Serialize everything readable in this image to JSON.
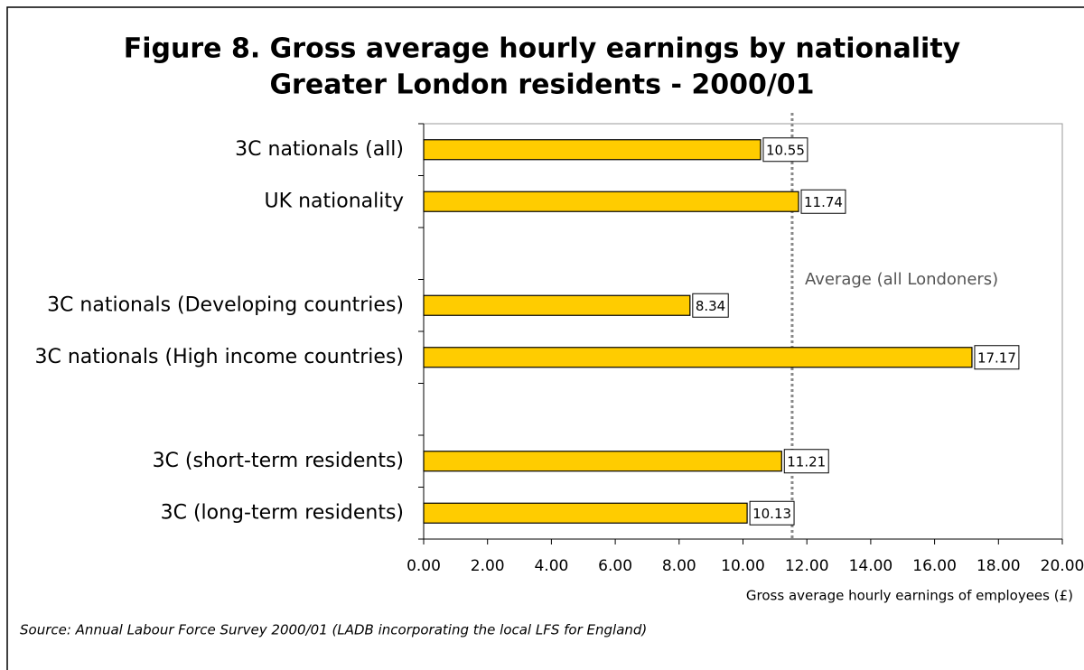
{
  "chart_data": {
    "type": "barh",
    "title": "Figure 8. Gross average hourly earnings by nationality",
    "subtitle": "Greater London residents - 2000/01",
    "categories": [
      "3C nationals (all)",
      "UK nationality",
      null,
      "3C nationals (Developing countries)",
      "3C nationals (High income countries)",
      null,
      "3C (short-term residents)",
      "3C (long-term residents)"
    ],
    "values": [
      10.55,
      11.74,
      null,
      8.34,
      17.17,
      null,
      11.21,
      10.13
    ],
    "color": "#ffcc00",
    "xlim": [
      0,
      20
    ],
    "xticks": [
      {
        "value": 0,
        "label": "0.00"
      },
      {
        "value": 2,
        "label": "2.00"
      },
      {
        "value": 4,
        "label": "4.00"
      },
      {
        "value": 6,
        "label": "6.00"
      },
      {
        "value": 8,
        "label": "8.00"
      },
      {
        "value": 10,
        "label": "10.00"
      },
      {
        "value": 12,
        "label": "12.00"
      },
      {
        "value": 14,
        "label": "14.00"
      },
      {
        "value": 16,
        "label": "16.00"
      },
      {
        "value": 18,
        "label": "18.00"
      },
      {
        "value": 20,
        "label": "20.00"
      }
    ],
    "xlabel": "Gross average hourly earnings of employees (£)",
    "average_line": 11.54,
    "average_label": "Average (all Londoners)",
    "source": "Source: Annual Labour Force Survey 2000/01 (LADB incorporating the local LFS for England)"
  }
}
